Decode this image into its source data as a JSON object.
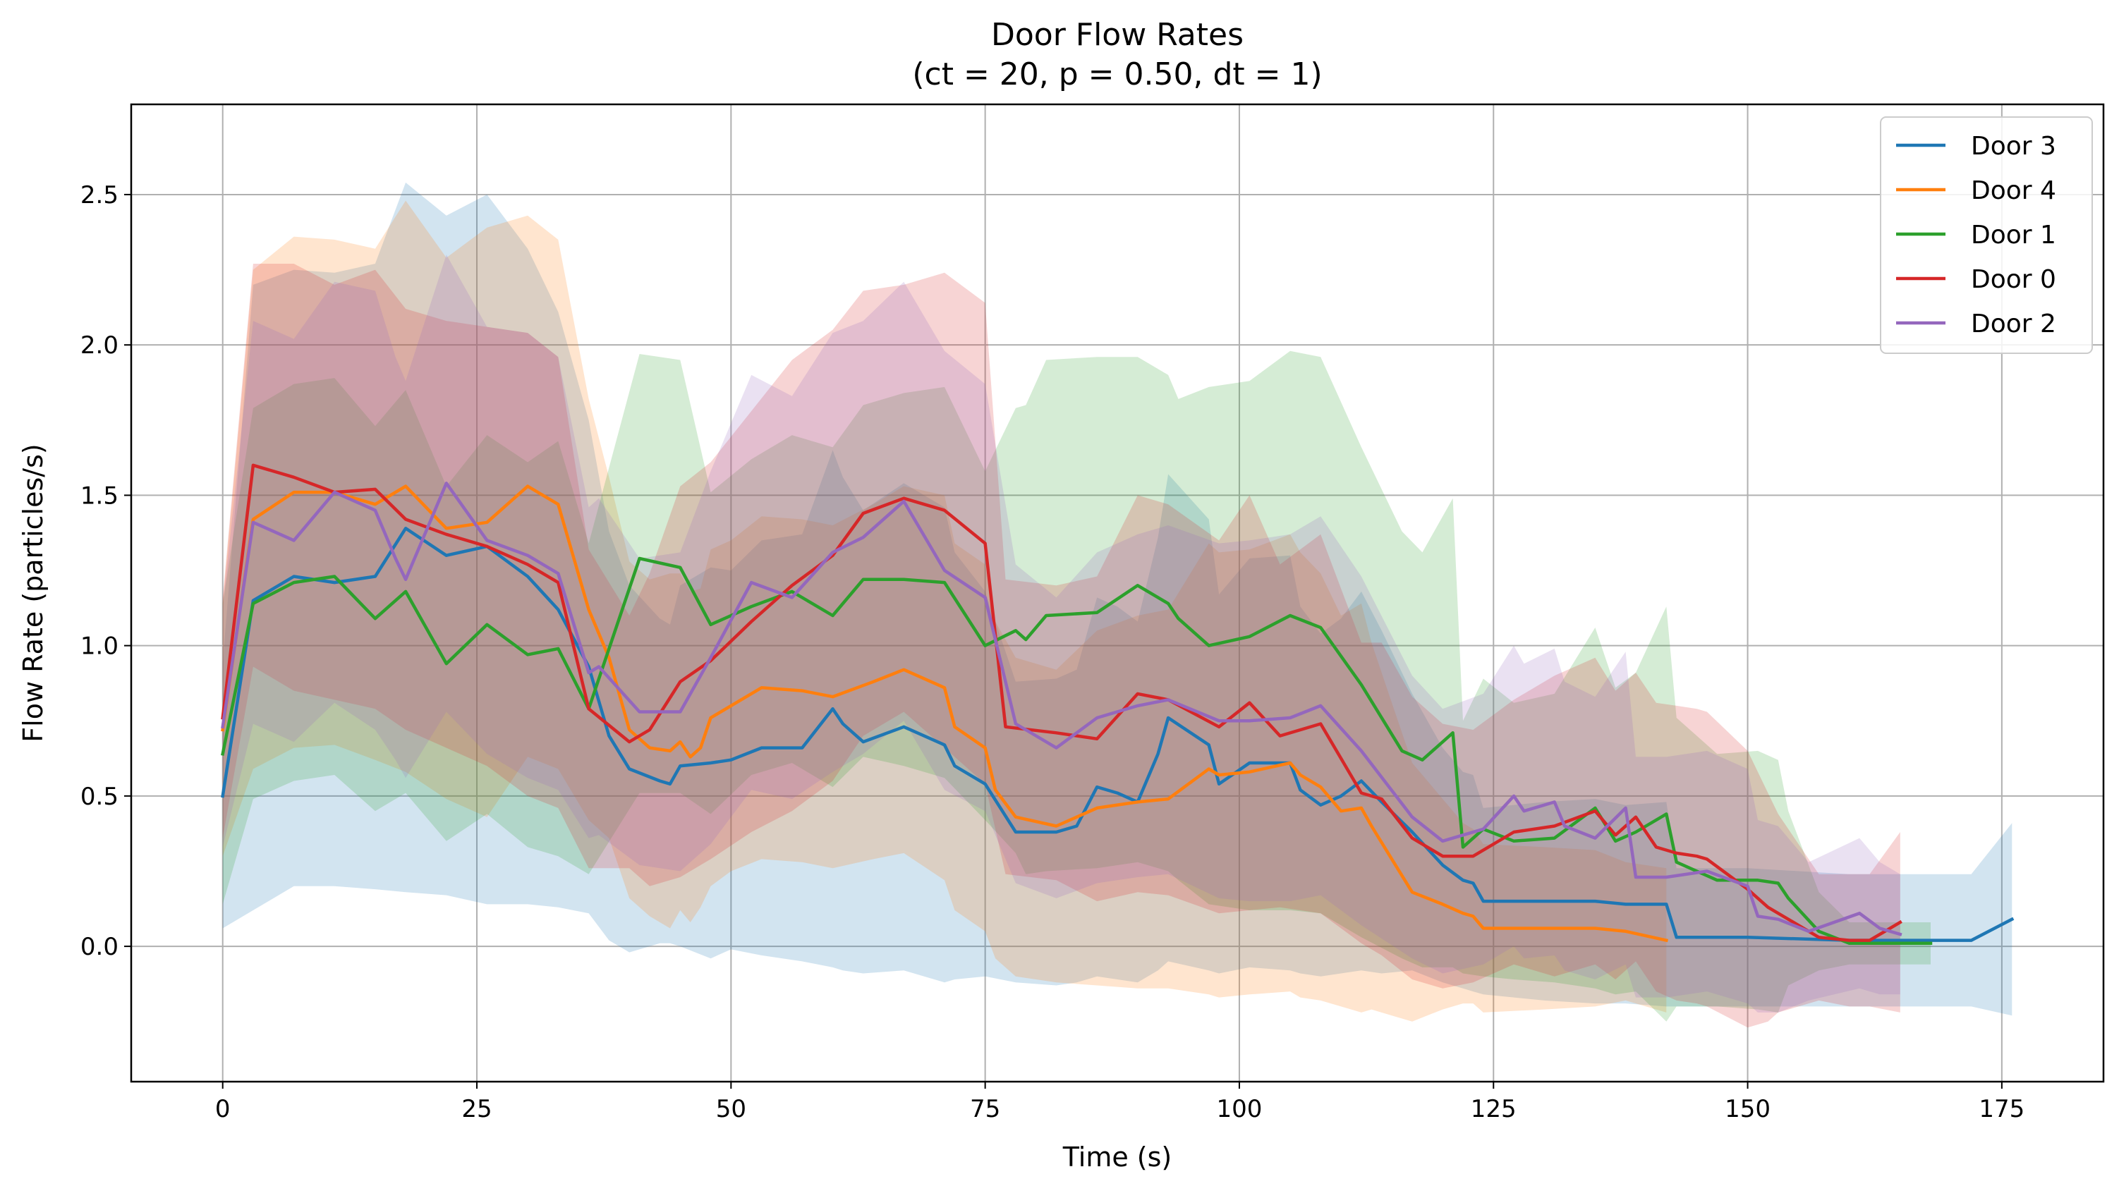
{
  "chart_data": {
    "type": "line",
    "title": "Door Flow Rates",
    "subtitle": "(ct = 20, p = 0.50, dt = 1)",
    "xlabel": "Time (s)",
    "ylabel": "Flow Rate (particles/s)",
    "xlim": [
      -9,
      185
    ],
    "ylim": [
      -0.45,
      2.8
    ],
    "xticks": [
      0,
      25,
      50,
      75,
      100,
      125,
      150,
      175
    ],
    "yticks": [
      0.0,
      0.5,
      1.0,
      1.5,
      2.0,
      2.5
    ],
    "xtick_labels": [
      "0",
      "25",
      "50",
      "75",
      "100",
      "125",
      "150",
      "175"
    ],
    "ytick_labels": [
      "0.0",
      "0.5",
      "1.0",
      "1.5",
      "2.0",
      "2.5"
    ],
    "grid": true,
    "legend_position": "top-right",
    "shaded_band": "mean ± spread",
    "series": [
      {
        "name": "Door 3",
        "color": "#1f77b4",
        "x": [
          0,
          3,
          7,
          11,
          15,
          18,
          22,
          26,
          30,
          33,
          36,
          38,
          40,
          43,
          44,
          45,
          48,
          50,
          53,
          57,
          60,
          61,
          63,
          67,
          71,
          72,
          75,
          78,
          82,
          84,
          86,
          88,
          90,
          92,
          93,
          97,
          98,
          101,
          105,
          106,
          108,
          110,
          112,
          114,
          117,
          120,
          122,
          123,
          124,
          130,
          135,
          138,
          142,
          143,
          150,
          160,
          172,
          176
        ],
        "y": [
          0.5,
          1.15,
          1.23,
          1.21,
          1.23,
          1.39,
          1.3,
          1.33,
          1.23,
          1.12,
          0.93,
          0.7,
          0.59,
          0.55,
          0.54,
          0.6,
          0.61,
          0.62,
          0.66,
          0.66,
          0.79,
          0.74,
          0.68,
          0.73,
          0.67,
          0.6,
          0.54,
          0.38,
          0.38,
          0.4,
          0.53,
          0.51,
          0.48,
          0.64,
          0.76,
          0.67,
          0.54,
          0.61,
          0.61,
          0.52,
          0.47,
          0.5,
          0.55,
          0.48,
          0.38,
          0.27,
          0.22,
          0.21,
          0.15,
          0.15,
          0.15,
          0.14,
          0.14,
          0.03,
          0.03,
          0.02,
          0.02,
          0.09
        ],
        "lower": [
          0.06,
          0.12,
          0.2,
          0.2,
          0.19,
          0.18,
          0.17,
          0.14,
          0.14,
          0.13,
          0.11,
          0.02,
          -0.02,
          0.01,
          0.01,
          0.0,
          -0.04,
          -0.01,
          -0.03,
          -0.05,
          -0.07,
          -0.08,
          -0.09,
          -0.08,
          -0.12,
          -0.11,
          -0.1,
          -0.12,
          -0.13,
          -0.12,
          -0.1,
          -0.11,
          -0.12,
          -0.08,
          -0.05,
          -0.08,
          -0.09,
          -0.07,
          -0.08,
          -0.09,
          -0.1,
          -0.09,
          -0.08,
          -0.09,
          -0.08,
          -0.12,
          -0.14,
          -0.15,
          -0.16,
          -0.18,
          -0.19,
          -0.19,
          -0.2,
          -0.2,
          -0.2,
          -0.2,
          -0.2,
          -0.23
        ],
        "upper": [
          0.94,
          2.2,
          2.25,
          2.24,
          2.27,
          2.54,
          2.43,
          2.5,
          2.32,
          2.11,
          1.75,
          1.38,
          1.2,
          1.09,
          1.07,
          1.2,
          1.26,
          1.25,
          1.35,
          1.37,
          1.65,
          1.56,
          1.45,
          1.54,
          1.46,
          1.31,
          1.18,
          0.88,
          0.89,
          0.92,
          1.16,
          1.13,
          1.08,
          1.36,
          1.57,
          1.42,
          1.17,
          1.29,
          1.3,
          1.13,
          1.04,
          1.09,
          1.18,
          1.05,
          0.84,
          0.66,
          0.58,
          0.57,
          0.46,
          0.48,
          0.49,
          0.47,
          0.48,
          0.26,
          0.26,
          0.24,
          0.24,
          0.41
        ]
      },
      {
        "name": "Door 4",
        "color": "#ff7f0e",
        "x": [
          0,
          3,
          7,
          11,
          15,
          18,
          22,
          26,
          30,
          33,
          36,
          38,
          40,
          42,
          44,
          45,
          46,
          47,
          48,
          50,
          53,
          57,
          60,
          64,
          67,
          71,
          72,
          75,
          76,
          78,
          82,
          86,
          90,
          93,
          97,
          98,
          101,
          105,
          106,
          108,
          110,
          112,
          113,
          115,
          117,
          120,
          122,
          123,
          124,
          130,
          135,
          138,
          142
        ],
        "y": [
          0.72,
          1.42,
          1.51,
          1.51,
          1.47,
          1.53,
          1.39,
          1.41,
          1.53,
          1.47,
          1.12,
          0.96,
          0.72,
          0.66,
          0.65,
          0.68,
          0.63,
          0.66,
          0.76,
          0.8,
          0.86,
          0.85,
          0.83,
          0.88,
          0.92,
          0.86,
          0.73,
          0.66,
          0.52,
          0.43,
          0.4,
          0.46,
          0.48,
          0.49,
          0.59,
          0.57,
          0.58,
          0.61,
          0.57,
          0.53,
          0.45,
          0.46,
          0.4,
          0.29,
          0.18,
          0.14,
          0.11,
          0.1,
          0.06,
          0.06,
          0.06,
          0.05,
          0.02
        ],
        "lower": [
          0.3,
          0.59,
          0.66,
          0.67,
          0.62,
          0.58,
          0.49,
          0.43,
          0.63,
          0.59,
          0.42,
          0.36,
          0.16,
          0.1,
          0.06,
          0.12,
          0.08,
          0.13,
          0.2,
          0.25,
          0.29,
          0.28,
          0.26,
          0.29,
          0.31,
          0.22,
          0.12,
          0.05,
          -0.04,
          -0.1,
          -0.12,
          -0.13,
          -0.14,
          -0.14,
          -0.16,
          -0.17,
          -0.16,
          -0.15,
          -0.17,
          -0.18,
          -0.2,
          -0.22,
          -0.21,
          -0.23,
          -0.25,
          -0.21,
          -0.19,
          -0.19,
          -0.22,
          -0.21,
          -0.2,
          -0.18,
          -0.22
        ],
        "upper": [
          1.14,
          2.25,
          2.36,
          2.35,
          2.32,
          2.48,
          2.29,
          2.39,
          2.43,
          2.35,
          1.82,
          1.56,
          1.28,
          1.22,
          1.24,
          1.24,
          1.18,
          1.19,
          1.32,
          1.35,
          1.43,
          1.42,
          1.4,
          1.47,
          1.53,
          1.5,
          1.34,
          1.27,
          1.08,
          0.96,
          0.92,
          1.05,
          1.1,
          1.12,
          1.34,
          1.31,
          1.32,
          1.37,
          1.31,
          1.24,
          1.1,
          1.14,
          1.01,
          0.81,
          0.61,
          0.49,
          0.41,
          0.39,
          0.34,
          0.33,
          0.32,
          0.28,
          0.26
        ]
      },
      {
        "name": "Door 1",
        "color": "#2ca02c",
        "x": [
          0,
          3,
          7,
          11,
          15,
          18,
          22,
          26,
          30,
          33,
          36,
          41,
          45,
          48,
          52,
          56,
          60,
          63,
          67,
          71,
          75,
          78,
          79,
          81,
          86,
          90,
          93,
          94,
          97,
          101,
          105,
          108,
          112,
          116,
          118,
          121,
          122,
          124,
          127,
          131,
          135,
          137,
          139,
          142,
          143,
          147,
          151,
          153,
          154,
          157,
          160,
          168
        ],
        "y": [
          0.64,
          1.14,
          1.21,
          1.23,
          1.09,
          1.18,
          0.94,
          1.07,
          0.97,
          0.99,
          0.79,
          1.29,
          1.26,
          1.07,
          1.13,
          1.18,
          1.1,
          1.22,
          1.22,
          1.21,
          1.0,
          1.05,
          1.02,
          1.1,
          1.11,
          1.2,
          1.14,
          1.09,
          1.0,
          1.03,
          1.1,
          1.06,
          0.87,
          0.65,
          0.62,
          0.71,
          0.33,
          0.39,
          0.35,
          0.36,
          0.46,
          0.35,
          0.38,
          0.44,
          0.28,
          0.22,
          0.22,
          0.21,
          0.16,
          0.05,
          0.01,
          0.01
        ],
        "lower": [
          0.14,
          0.49,
          0.55,
          0.57,
          0.45,
          0.51,
          0.35,
          0.44,
          0.33,
          0.3,
          0.24,
          0.51,
          0.51,
          0.44,
          0.57,
          0.61,
          0.53,
          0.63,
          0.6,
          0.56,
          0.42,
          0.31,
          0.24,
          0.25,
          0.26,
          0.28,
          0.25,
          0.22,
          0.14,
          0.12,
          0.12,
          0.11,
          0.03,
          -0.04,
          -0.07,
          -0.07,
          -0.09,
          -0.1,
          -0.11,
          -0.12,
          -0.14,
          -0.16,
          -0.15,
          -0.25,
          -0.2,
          -0.2,
          -0.21,
          -0.22,
          -0.13,
          -0.08,
          -0.06,
          -0.06
        ],
        "upper": [
          1.14,
          1.79,
          1.87,
          1.89,
          1.73,
          1.85,
          1.53,
          1.7,
          1.61,
          1.68,
          1.34,
          1.97,
          1.95,
          1.51,
          1.62,
          1.7,
          1.66,
          1.8,
          1.84,
          1.86,
          1.58,
          1.79,
          1.8,
          1.95,
          1.96,
          1.96,
          1.9,
          1.82,
          1.86,
          1.88,
          1.98,
          1.96,
          1.66,
          1.38,
          1.31,
          1.49,
          0.75,
          0.89,
          0.81,
          0.84,
          1.06,
          0.86,
          0.91,
          1.13,
          0.76,
          0.64,
          0.65,
          0.62,
          0.45,
          0.18,
          0.08,
          0.08
        ]
      },
      {
        "name": "Door 0",
        "color": "#d62728",
        "x": [
          0,
          3,
          7,
          11,
          15,
          18,
          22,
          26,
          30,
          33,
          36,
          40,
          42,
          45,
          48,
          52,
          56,
          60,
          63,
          67,
          71,
          75,
          77,
          82,
          86,
          90,
          93,
          98,
          101,
          104,
          108,
          112,
          114,
          117,
          120,
          123,
          127,
          131,
          135,
          137,
          139,
          141,
          143,
          145,
          146,
          150,
          152,
          153,
          157,
          160,
          162,
          165
        ],
        "y": [
          0.76,
          1.6,
          1.56,
          1.51,
          1.52,
          1.42,
          1.37,
          1.33,
          1.27,
          1.21,
          0.79,
          0.68,
          0.72,
          0.88,
          0.95,
          1.08,
          1.2,
          1.3,
          1.44,
          1.49,
          1.45,
          1.34,
          0.73,
          0.71,
          0.69,
          0.84,
          0.82,
          0.73,
          0.81,
          0.7,
          0.74,
          0.51,
          0.49,
          0.36,
          0.3,
          0.3,
          0.38,
          0.4,
          0.45,
          0.37,
          0.43,
          0.33,
          0.31,
          0.3,
          0.29,
          0.19,
          0.13,
          0.11,
          0.03,
          0.02,
          0.02,
          0.08
        ],
        "lower": [
          0.36,
          0.93,
          0.85,
          0.82,
          0.79,
          0.72,
          0.66,
          0.6,
          0.5,
          0.46,
          0.26,
          0.26,
          0.2,
          0.23,
          0.29,
          0.38,
          0.45,
          0.55,
          0.7,
          0.78,
          0.66,
          0.54,
          0.24,
          0.22,
          0.15,
          0.18,
          0.17,
          0.11,
          0.12,
          0.13,
          0.11,
          0.01,
          -0.03,
          -0.11,
          -0.14,
          -0.12,
          -0.06,
          -0.1,
          -0.06,
          -0.11,
          -0.05,
          -0.15,
          -0.18,
          -0.19,
          -0.2,
          -0.27,
          -0.25,
          -0.22,
          -0.18,
          -0.2,
          -0.2,
          -0.22
        ],
        "upper": [
          1.16,
          2.27,
          2.27,
          2.2,
          2.25,
          2.12,
          2.08,
          2.06,
          2.04,
          1.96,
          1.32,
          1.1,
          1.24,
          1.53,
          1.61,
          1.78,
          1.95,
          2.05,
          2.18,
          2.2,
          2.24,
          2.14,
          1.22,
          1.2,
          1.23,
          1.5,
          1.47,
          1.35,
          1.5,
          1.27,
          1.37,
          1.01,
          1.01,
          0.83,
          0.74,
          0.72,
          0.82,
          0.9,
          0.96,
          0.85,
          0.91,
          0.81,
          0.8,
          0.79,
          0.78,
          0.65,
          0.51,
          0.44,
          0.24,
          0.24,
          0.24,
          0.38
        ]
      },
      {
        "name": "Door 2",
        "color": "#9467bd",
        "x": [
          0,
          3,
          7,
          11,
          15,
          17,
          18,
          22,
          26,
          30,
          33,
          36,
          37,
          41,
          45,
          48,
          52,
          56,
          60,
          63,
          67,
          71,
          75,
          78,
          82,
          86,
          90,
          93,
          98,
          101,
          105,
          108,
          112,
          117,
          120,
          124,
          127,
          128,
          131,
          132,
          135,
          138,
          139,
          142,
          146,
          150,
          151,
          153,
          156,
          161,
          163,
          165
        ],
        "y": [
          0.73,
          1.41,
          1.35,
          1.51,
          1.45,
          1.29,
          1.22,
          1.54,
          1.35,
          1.3,
          1.24,
          0.91,
          0.93,
          0.78,
          0.78,
          0.96,
          1.21,
          1.16,
          1.31,
          1.36,
          1.48,
          1.25,
          1.16,
          0.74,
          0.66,
          0.76,
          0.8,
          0.82,
          0.75,
          0.75,
          0.76,
          0.8,
          0.65,
          0.43,
          0.35,
          0.39,
          0.5,
          0.45,
          0.48,
          0.4,
          0.36,
          0.46,
          0.23,
          0.23,
          0.25,
          0.2,
          0.1,
          0.09,
          0.05,
          0.11,
          0.06,
          0.04
        ],
        "lower": [
          0.33,
          0.74,
          0.68,
          0.81,
          0.72,
          0.62,
          0.56,
          0.78,
          0.64,
          0.56,
          0.52,
          0.36,
          0.37,
          0.27,
          0.25,
          0.34,
          0.52,
          0.49,
          0.58,
          0.64,
          0.75,
          0.52,
          0.45,
          0.21,
          0.16,
          0.21,
          0.23,
          0.24,
          0.16,
          0.15,
          0.15,
          0.17,
          0.07,
          -0.04,
          -0.09,
          -0.06,
          0.0,
          -0.04,
          -0.03,
          -0.08,
          -0.11,
          -0.06,
          -0.17,
          -0.17,
          -0.15,
          -0.19,
          -0.22,
          -0.22,
          -0.18,
          -0.14,
          -0.16,
          -0.16
        ],
        "upper": [
          1.13,
          2.08,
          2.02,
          2.21,
          2.18,
          1.96,
          1.88,
          2.3,
          2.06,
          2.04,
          1.96,
          1.46,
          1.49,
          1.29,
          1.31,
          1.58,
          1.9,
          1.83,
          2.04,
          2.08,
          2.21,
          1.98,
          1.87,
          1.27,
          1.16,
          1.31,
          1.37,
          1.4,
          1.34,
          1.35,
          1.37,
          1.43,
          1.23,
          0.9,
          0.79,
          0.84,
          1.0,
          0.94,
          0.99,
          0.88,
          0.83,
          0.98,
          0.63,
          0.63,
          0.65,
          0.59,
          0.42,
          0.4,
          0.28,
          0.36,
          0.28,
          0.24
        ]
      }
    ]
  }
}
